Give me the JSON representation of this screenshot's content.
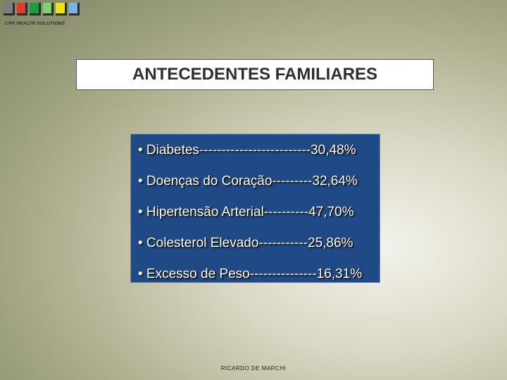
{
  "logo": {
    "squares": [
      "#7d7d7d",
      "#e23b2b",
      "#1c9c3a",
      "#7fd36b",
      "#f2e400",
      "#7bb3e8"
    ],
    "company": "CPH HEALTH SOLUTIONS"
  },
  "title": "ANTECEDENTES FAMILIARES",
  "items": [
    "• Diabetes-------------------------30,48%",
    "• Doenças do Coração---------32,64%",
    "• Hipertensão Arterial----------47,70%",
    "• Colesterol Elevado-----------25,86%",
    "• Excesso de Peso---------------16,31%"
  ],
  "footer": "RICARDO DE MARCHI",
  "colors": {
    "panel": "#1f4a86",
    "title_box": "#ffffff"
  }
}
